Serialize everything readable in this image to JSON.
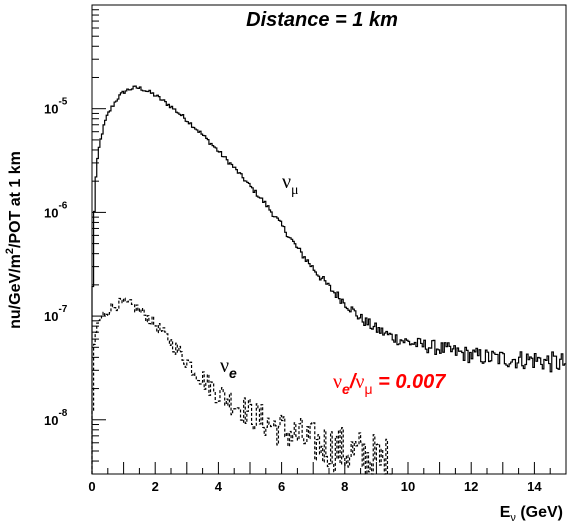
{
  "chart_data": {
    "type": "line",
    "title": "Distance = 1 km",
    "xlabel_main": "E",
    "xlabel_sub": "ν",
    "xlabel_unit": "(GeV)",
    "ylabel_parts": {
      "pre": "nu/GeV/m",
      "sup": "2",
      "post": "/POT at 1 km"
    },
    "xlim": [
      0,
      15
    ],
    "ylim": [
      3e-09,
      0.0001
    ],
    "yscale": "log",
    "x_ticks": [
      0,
      2,
      4,
      6,
      8,
      10,
      12,
      14
    ],
    "y_ticks": [
      {
        "value": 1e-08,
        "base": "10",
        "exp": "-8"
      },
      {
        "value": 1e-07,
        "base": "10",
        "exp": "-7"
      },
      {
        "value": 1e-06,
        "base": "10",
        "exp": "-6"
      },
      {
        "value": 1e-05,
        "base": "10",
        "exp": "-5"
      }
    ],
    "grid": false,
    "series": [
      {
        "name": "ν_μ",
        "style": "solid",
        "color": "#000000",
        "x": [
          0.0,
          0.05,
          0.1,
          0.2,
          0.3,
          0.4,
          0.5,
          0.6,
          0.8,
          1.0,
          1.2,
          1.4,
          1.6,
          1.8,
          2.0,
          2.5,
          3.0,
          3.5,
          4.0,
          4.5,
          5.0,
          5.5,
          6.0,
          6.5,
          7.0,
          7.5,
          8.0,
          8.5,
          9.0,
          9.5,
          10.0,
          10.5,
          11.0,
          11.5,
          12.0,
          12.5,
          13.0,
          13.5,
          14.0,
          14.5,
          15.0
        ],
        "y": [
          6e-08,
          6e-07,
          1.8e-06,
          3.8e-06,
          5.5e-06,
          7.2e-06,
          8.8e-06,
          1e-05,
          1.25e-05,
          1.45e-05,
          1.55e-05,
          1.6e-05,
          1.55e-05,
          1.45e-05,
          1.35e-05,
          1.05e-05,
          7.8e-06,
          5.6e-06,
          3.9e-06,
          2.7e-06,
          1.8e-06,
          1.2e-06,
          7.5e-07,
          4.5e-07,
          2.9e-07,
          1.9e-07,
          1.35e-07,
          9.5e-08,
          7.5e-08,
          6.3e-08,
          5.6e-08,
          5.2e-08,
          4.9e-08,
          4.5e-08,
          4.2e-08,
          4e-08,
          3.9e-08,
          3.8e-08,
          3.8e-08,
          3.6e-08,
          3.5e-08
        ]
      },
      {
        "name": "ν_e",
        "style": "dashed",
        "color": "#000000",
        "x": [
          0.0,
          0.05,
          0.1,
          0.2,
          0.4,
          0.6,
          0.8,
          1.0,
          1.2,
          1.4,
          1.6,
          1.8,
          2.0,
          2.5,
          3.0,
          3.5,
          4.0,
          4.5,
          5.0,
          5.5,
          6.0,
          6.5,
          7.0,
          7.5,
          8.0,
          8.5,
          9.0,
          9.5
        ],
        "y": [
          3e-09,
          4e-08,
          6.5e-08,
          8.8e-08,
          1.05e-07,
          1.2e-07,
          1.3e-07,
          1.32e-07,
          1.28e-07,
          1.2e-07,
          1.08e-07,
          9.5e-08,
          8.3e-08,
          5.6e-08,
          3.7e-08,
          2.5e-08,
          1.8e-08,
          1.45e-08,
          1.15e-08,
          9.5e-09,
          8e-09,
          7e-09,
          6e-09,
          5.5e-09,
          5e-09,
          4.5e-09,
          4e-09,
          3.5e-09
        ]
      }
    ],
    "annotations": {
      "numu_label": {
        "base": "ν",
        "sub": "μ"
      },
      "nue_label": {
        "base": "ν",
        "sub": "e"
      },
      "ratio_label": {
        "num": "ν",
        "num_sub": "e",
        "slash": "/",
        "den": "ν",
        "den_sub": "μ",
        "value": " = 0.007",
        "color": "#ff0000"
      }
    }
  }
}
